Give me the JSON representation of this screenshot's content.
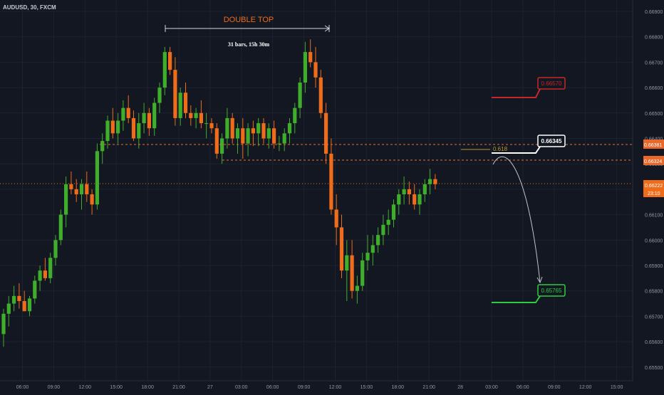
{
  "header": {
    "symbol": "AUDUSD, 30, FXCM"
  },
  "annotations": {
    "pattern_label": "DOUBLE TOP",
    "bars_range": "31 bars, 15h 30m",
    "fib_label": "0.618",
    "target_high_label": "0.66345",
    "stop_label": "0.66570",
    "target_low_label": "0.65765"
  },
  "price_axis": {
    "ticks": [
      "0.66900",
      "0.66800",
      "0.66700",
      "0.66600",
      "0.66500",
      "0.66400",
      "0.66300",
      "0.66200",
      "0.66100",
      "0.66000",
      "0.65900",
      "0.65800",
      "0.65700",
      "0.65600",
      "0.65500"
    ],
    "badges": {
      "resistance": "0.66381",
      "support": "0.66324",
      "last_price": "0.66222",
      "countdown": "23:10"
    }
  },
  "time_axis": {
    "ticks": [
      "06:00",
      "09:00",
      "12:00",
      "15:00",
      "18:00",
      "21:00",
      "27",
      "03:00",
      "06:00",
      "09:00",
      "12:00",
      "15:00",
      "18:00",
      "21:00",
      "28",
      "03:00",
      "06:00",
      "09:00",
      "12:00",
      "15:00"
    ]
  },
  "colors": {
    "background": "#131722",
    "grid": "#1e2230",
    "bull": "#3fae2a",
    "bear": "#ef6c1a",
    "red": "#c62828",
    "green_target": "#2ecc40",
    "level_line": "#e0703a"
  },
  "chart_data": {
    "type": "candlestick",
    "symbol": "AUDUSD",
    "timeframe": "30",
    "source": "FXCM",
    "ylim": [
      0.6545,
      0.6695
    ],
    "levels": [
      0.66381,
      0.66324
    ],
    "last_price": 0.66222,
    "stop_level": 0.6657,
    "target_levels": [
      0.66345,
      0.65765
    ],
    "fib_level": "0.618",
    "candles": [
      [
        0.6563,
        0.6573,
        0.6558,
        0.6571
      ],
      [
        0.6571,
        0.6578,
        0.6566,
        0.6575
      ],
      [
        0.6575,
        0.6582,
        0.6572,
        0.6578
      ],
      [
        0.6578,
        0.6583,
        0.6573,
        0.6576
      ],
      [
        0.6576,
        0.658,
        0.6572,
        0.6572
      ],
      [
        0.6572,
        0.6578,
        0.657,
        0.6577
      ],
      [
        0.6577,
        0.6586,
        0.6575,
        0.6584
      ],
      [
        0.6584,
        0.659,
        0.658,
        0.6588
      ],
      [
        0.6588,
        0.6593,
        0.6584,
        0.6585
      ],
      [
        0.6585,
        0.6595,
        0.6583,
        0.6593
      ],
      [
        0.6593,
        0.6602,
        0.659,
        0.66
      ],
      [
        0.66,
        0.6612,
        0.6598,
        0.661
      ],
      [
        0.661,
        0.6625,
        0.6605,
        0.6622
      ],
      [
        0.6622,
        0.6627,
        0.6618,
        0.662
      ],
      [
        0.662,
        0.6624,
        0.6615,
        0.6618
      ],
      [
        0.6618,
        0.6624,
        0.6612,
        0.6622
      ],
      [
        0.6622,
        0.6627,
        0.6615,
        0.6618
      ],
      [
        0.6618,
        0.662,
        0.661,
        0.6614
      ],
      [
        0.6614,
        0.6638,
        0.6612,
        0.6635
      ],
      [
        0.6635,
        0.6642,
        0.663,
        0.6639
      ],
      [
        0.6639,
        0.6649,
        0.6636,
        0.6647
      ],
      [
        0.6647,
        0.6652,
        0.664,
        0.6642
      ],
      [
        0.6642,
        0.665,
        0.6638,
        0.6647
      ],
      [
        0.6647,
        0.6655,
        0.6643,
        0.6652
      ],
      [
        0.6652,
        0.6657,
        0.6646,
        0.6648
      ],
      [
        0.6648,
        0.6651,
        0.6639,
        0.664
      ],
      [
        0.664,
        0.665,
        0.6636,
        0.6646
      ],
      [
        0.6646,
        0.6654,
        0.6642,
        0.665
      ],
      [
        0.665,
        0.6652,
        0.6641,
        0.6644
      ],
      [
        0.6644,
        0.6656,
        0.6641,
        0.6654
      ],
      [
        0.6654,
        0.6662,
        0.665,
        0.666
      ],
      [
        0.666,
        0.6676,
        0.6657,
        0.6674
      ],
      [
        0.6674,
        0.6676,
        0.6665,
        0.6667
      ],
      [
        0.6667,
        0.6672,
        0.6645,
        0.6648
      ],
      [
        0.6648,
        0.666,
        0.6645,
        0.6658
      ],
      [
        0.6658,
        0.6662,
        0.6648,
        0.665
      ],
      [
        0.665,
        0.6653,
        0.6645,
        0.6648
      ],
      [
        0.6648,
        0.6652,
        0.6644,
        0.665
      ],
      [
        0.665,
        0.6655,
        0.6644,
        0.6646
      ],
      [
        0.6646,
        0.665,
        0.664,
        0.6646
      ],
      [
        0.6646,
        0.6648,
        0.6642,
        0.6644
      ],
      [
        0.6644,
        0.6646,
        0.6632,
        0.6634
      ],
      [
        0.6634,
        0.6642,
        0.663,
        0.664
      ],
      [
        0.664,
        0.6652,
        0.6636,
        0.6648
      ],
      [
        0.6648,
        0.665,
        0.6638,
        0.664
      ],
      [
        0.664,
        0.6646,
        0.6634,
        0.6644
      ],
      [
        0.6644,
        0.6648,
        0.6632,
        0.6638
      ],
      [
        0.6638,
        0.6646,
        0.6633,
        0.6644
      ],
      [
        0.6644,
        0.6647,
        0.6637,
        0.6642
      ],
      [
        0.6642,
        0.6648,
        0.6637,
        0.6646
      ],
      [
        0.6646,
        0.6648,
        0.6638,
        0.664
      ],
      [
        0.664,
        0.6646,
        0.6636,
        0.6644
      ],
      [
        0.6644,
        0.6647,
        0.6636,
        0.6638
      ],
      [
        0.6638,
        0.6641,
        0.6635,
        0.6638
      ],
      [
        0.6638,
        0.6644,
        0.6635,
        0.6642
      ],
      [
        0.6642,
        0.6648,
        0.6638,
        0.6646
      ],
      [
        0.6646,
        0.6654,
        0.6642,
        0.6652
      ],
      [
        0.6652,
        0.6664,
        0.6648,
        0.6662
      ],
      [
        0.6662,
        0.6678,
        0.6658,
        0.6674
      ],
      [
        0.6674,
        0.6679,
        0.6668,
        0.667
      ],
      [
        0.667,
        0.6676,
        0.666,
        0.6664
      ],
      [
        0.6664,
        0.6667,
        0.6648,
        0.665
      ],
      [
        0.665,
        0.6654,
        0.663,
        0.6634
      ],
      [
        0.6634,
        0.664,
        0.661,
        0.6612
      ],
      [
        0.6612,
        0.6618,
        0.6598,
        0.6605
      ],
      [
        0.6605,
        0.661,
        0.6585,
        0.6588
      ],
      [
        0.6588,
        0.66,
        0.6576,
        0.6594
      ],
      [
        0.6594,
        0.66,
        0.6577,
        0.658
      ],
      [
        0.658,
        0.6586,
        0.6575,
        0.6582
      ],
      [
        0.6582,
        0.6595,
        0.658,
        0.6592
      ],
      [
        0.6592,
        0.6602,
        0.6588,
        0.6595
      ],
      [
        0.6595,
        0.6602,
        0.659,
        0.6598
      ],
      [
        0.6598,
        0.6605,
        0.6595,
        0.6602
      ],
      [
        0.6602,
        0.661,
        0.6598,
        0.6606
      ],
      [
        0.6606,
        0.6612,
        0.6602,
        0.6608
      ],
      [
        0.6608,
        0.6616,
        0.6605,
        0.6614
      ],
      [
        0.6614,
        0.662,
        0.661,
        0.6618
      ],
      [
        0.6618,
        0.6625,
        0.6614,
        0.662
      ],
      [
        0.662,
        0.6623,
        0.6614,
        0.6618
      ],
      [
        0.6618,
        0.6622,
        0.6612,
        0.6614
      ],
      [
        0.6614,
        0.662,
        0.661,
        0.6618
      ],
      [
        0.6618,
        0.6624,
        0.6615,
        0.6622
      ],
      [
        0.6622,
        0.6628,
        0.6618,
        0.6624
      ],
      [
        0.6624,
        0.6626,
        0.662,
        0.6622
      ]
    ]
  }
}
